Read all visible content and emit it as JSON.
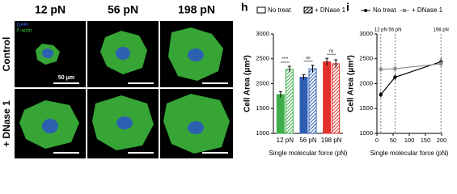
{
  "images": {
    "column_labels": [
      "12 pN",
      "56 pN",
      "198 pN"
    ],
    "row_labels": [
      "Control",
      "+ DNase 1"
    ],
    "channels": [
      "DAPI",
      "F-actin"
    ],
    "scale_bar": "50 μm"
  },
  "chart_data": [
    {
      "type": "bar",
      "panel": "h",
      "y_label": "Cell Area (μm²)",
      "x_label": "Single molecular force (pN)",
      "categories": [
        "12 pN",
        "56 pN",
        "198 pN"
      ],
      "category_colors": [
        "#3dae49",
        "#2f5fb3",
        "#e2312b"
      ],
      "series": [
        {
          "name": "No treat",
          "pattern": "solid",
          "values": [
            1780,
            2130,
            2440
          ],
          "errors": [
            60,
            50,
            70
          ]
        },
        {
          "name": "+ DNase 1",
          "pattern": "hatch",
          "values": [
            2290,
            2300,
            2400
          ],
          "errors": [
            60,
            70,
            80
          ]
        }
      ],
      "annotations": [
        "****",
        "ns",
        "ns"
      ],
      "ylim": [
        1000,
        3000
      ],
      "yticks": [
        1000,
        1500,
        2000,
        2500,
        3000
      ]
    },
    {
      "type": "line",
      "panel": "i",
      "y_label": "Cell Area (μm²)",
      "x_label": "Single molecular force (pN)",
      "x": [
        12,
        56,
        198
      ],
      "series": [
        {
          "name": "No treat",
          "color": "#000000",
          "marker": "circle",
          "values": [
            1780,
            2130,
            2440
          ],
          "errors": [
            60,
            50,
            70
          ]
        },
        {
          "name": "+ DNase 1",
          "color": "#8c8c8c",
          "marker": "square",
          "values": [
            2290,
            2300,
            2400
          ],
          "errors": [
            60,
            70,
            80
          ]
        }
      ],
      "vlines": [
        {
          "value": 12,
          "label": "12 pN"
        },
        {
          "value": 56,
          "label": "56 pN"
        },
        {
          "value": 198,
          "label": "198 pN"
        }
      ],
      "xlim": [
        0,
        200
      ],
      "xticks": [
        0,
        50,
        100,
        150,
        200
      ],
      "ylim": [
        1000,
        3000
      ],
      "yticks": [
        1000,
        1500,
        2000,
        2500,
        3000
      ]
    }
  ]
}
